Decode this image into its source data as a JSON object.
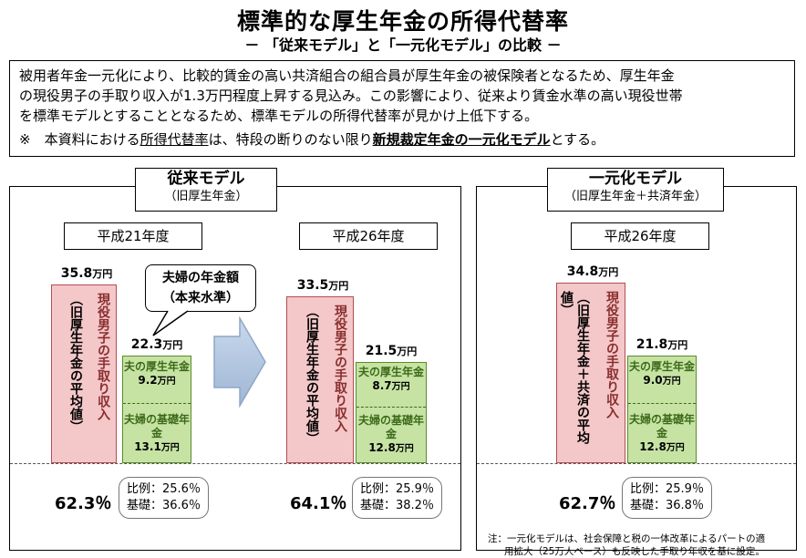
{
  "title": "標準的な厚生年金の所得代替率",
  "subtitle": "－ 「従来モデル」と「一元化モデル」の比較 －",
  "intro": {
    "lines": [
      "被用者年金一元化により、比較的賃金の高い共済組合の組合員が厚生年金の被保険者となるため、厚生年金",
      "の現役男子の手取り収入が1.3万円程度上昇する見込み。この影響により、従来より賃金水準の高い現役世帯",
      "を標準モデルとすることとなるため、標準モデルの所得代替率が見かけ上低下する。"
    ],
    "note_prefix": "※　本資料における",
    "note_u": "所得代替率",
    "note_mid": "は、特段の断りのない限り",
    "note_bu": "新規裁定年金の一元化モデル",
    "note_suffix": "とする。"
  },
  "left_panel": {
    "title": "従来モデル",
    "subtitle": "（旧厚生年金）"
  },
  "right_panel": {
    "title": "一元化モデル",
    "subtitle": "（旧厚生年金＋共済年金）"
  },
  "callout": {
    "line1": "夫婦の年金額",
    "line2": "（本来水準）"
  },
  "unit": "万円",
  "scenarios": [
    {
      "year": "平成21年度",
      "income_value": "35.8",
      "income_text_a": "現役男子の手取り収入",
      "income_text_b": "（旧厚生年金の平均値）",
      "pension_total": "22.3",
      "employee_label": "夫の厚生年金",
      "employee_value": "9.2",
      "basic_label": "夫婦の基礎年金",
      "basic_value": "13.1",
      "replacement_rate": "62.3％",
      "ratio_employee": "比例：25.6％",
      "ratio_basic": "基礎：36.6％"
    },
    {
      "year": "平成26年度",
      "income_value": "33.5",
      "income_text_a": "現役男子の手取り収入",
      "income_text_b": "（旧厚生年金の平均値）",
      "pension_total": "21.5",
      "employee_label": "夫の厚生年金",
      "employee_value": "8.7",
      "basic_label": "夫婦の基礎年金",
      "basic_value": "12.8",
      "replacement_rate": "64.1％",
      "ratio_employee": "比例：25.9％",
      "ratio_basic": "基礎：38.2％"
    },
    {
      "year": "平成26年度",
      "income_value": "34.8",
      "income_text_a": "現役男子の手取り収入",
      "income_text_b": "（旧厚生年金＋共済の平均値）",
      "pension_total": "21.8",
      "employee_label": "夫の厚生年金",
      "employee_value": "9.0",
      "basic_label": "夫婦の基礎年金",
      "basic_value": "12.8",
      "replacement_rate": "62.7％",
      "ratio_employee": "比例：25.9％",
      "ratio_basic": "基礎：36.8％"
    }
  ],
  "footnote": {
    "line1": "注：一元化モデルは、社会保障と税の一体改革によるパートの適",
    "line2": "用拡大（25万人ベース）も反映した手取り年収を基に設定。"
  },
  "colors": {
    "income_fill": "#f4c7c9",
    "income_border": "#b44e50",
    "pension_fill": "#c6e3a4",
    "pension_border": "#5a8a2c",
    "arrow_fill": "#b8cce4"
  }
}
